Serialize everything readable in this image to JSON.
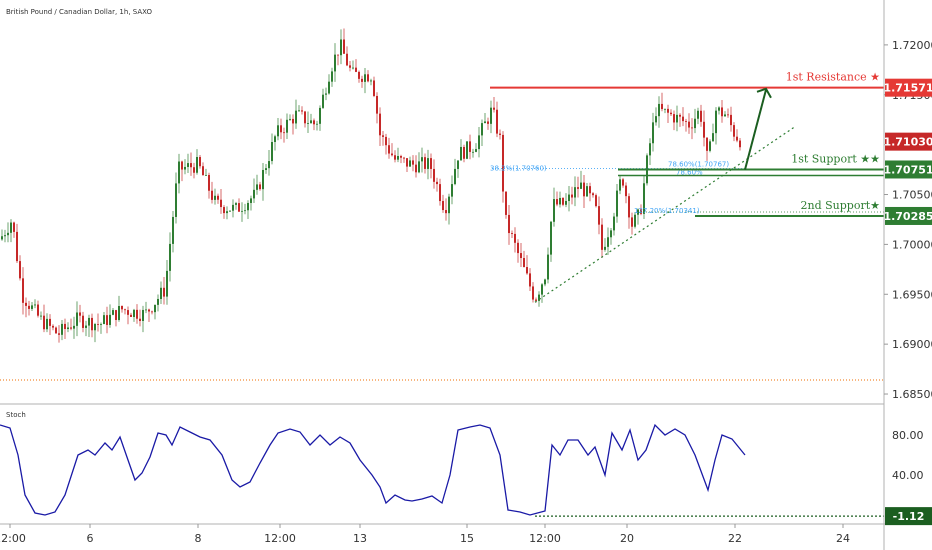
{
  "chart_data": [
    {
      "type": "candlestick",
      "title": "British Pound / Canadian Dollar, 1h, SAXO",
      "x_ticks": [
        "12:00",
        "6",
        "8",
        "12:00",
        "13",
        "15",
        "12:00",
        "20",
        "22",
        "24"
      ],
      "y_ticks": [
        "1.72000",
        "1.71500",
        "1.71000",
        "1.70500",
        "1.70000",
        "1.69500",
        "1.69000",
        "1.68500"
      ],
      "ylim": [
        1.684,
        1.7245
      ],
      "colors": {
        "up": "#2e7d32",
        "down": "#c62828",
        "resistance": "#e53935",
        "support": "#2e7d32",
        "fib": "#42a5f5",
        "trend": "#2e7d32",
        "reference": "#ef6c00"
      },
      "series": [
        {
          "name": "",
          "close_path": [
            [
              0,
              1.7005
            ],
            [
              12,
              1.7025
            ],
            [
              22,
              1.695
            ],
            [
              40,
              1.6925
            ],
            [
              58,
              1.691
            ],
            [
              78,
              1.6925
            ],
            [
              100,
              1.692
            ],
            [
              122,
              1.6935
            ],
            [
              145,
              1.693
            ],
            [
              165,
              1.6955
            ],
            [
              178,
              1.7075
            ],
            [
              198,
              1.708
            ],
            [
              216,
              1.704
            ],
            [
              236,
              1.7035
            ],
            [
              256,
              1.705
            ],
            [
              276,
              1.711
            ],
            [
              296,
              1.713
            ],
            [
              316,
              1.712
            ],
            [
              330,
              1.7175
            ],
            [
              340,
              1.72
            ],
            [
              352,
              1.717
            ],
            [
              372,
              1.717
            ],
            [
              380,
              1.711
            ],
            [
              395,
              1.7085
            ],
            [
              412,
              1.708
            ],
            [
              430,
              1.708
            ],
            [
              445,
              1.7035
            ],
            [
              458,
              1.709
            ],
            [
              475,
              1.71
            ],
            [
              492,
              1.7135
            ],
            [
              500,
              1.7105
            ],
            [
              505,
              1.7025
            ],
            [
              520,
              1.6985
            ],
            [
              535,
              1.6945
            ],
            [
              545,
              1.697
            ],
            [
              553,
              1.704
            ],
            [
              565,
              1.704
            ],
            [
              580,
              1.706
            ],
            [
              595,
              1.704
            ],
            [
              602,
              1.6995
            ],
            [
              612,
              1.7025
            ],
            [
              622,
              1.707
            ],
            [
              632,
              1.702
            ],
            [
              640,
              1.703
            ],
            [
              648,
              1.709
            ],
            [
              656,
              1.7135
            ],
            [
              670,
              1.713
            ],
            [
              690,
              1.712
            ],
            [
              700,
              1.7135
            ],
            [
              708,
              1.708
            ],
            [
              715,
              1.7135
            ],
            [
              726,
              1.713
            ],
            [
              735,
              1.711
            ],
            [
              742,
              1.7103
            ]
          ]
        }
      ],
      "annotations": [
        {
          "text": "1st Resistance ★",
          "value": 1.71571,
          "badge": "1.71571",
          "color": "#e53935"
        },
        {
          "text": "1st Support ★★",
          "value": 1.70751,
          "badge": "1.70751",
          "color": "#2e7d32"
        },
        {
          "text": "2nd Support★",
          "value": 1.70285,
          "badge": "1.70285",
          "color": "#2e7d32"
        }
      ],
      "current_price_badge": "1.71030",
      "current_price": 1.7103,
      "fib_labels": [
        "38.2%(1.70760)",
        "78.60%(1.70767)",
        "78.60%",
        "127.20%(1.70341)"
      ],
      "fib_level_value": 1.7076,
      "reference_level": 1.6864
    },
    {
      "type": "line",
      "title": "Stoch",
      "ylim": [
        -5,
        100
      ],
      "y_ticks": [
        "80.00",
        "40.00"
      ],
      "current_badge": "-1.12",
      "reference_value": -1.12,
      "line_color": "#1a1aa6",
      "series": [
        {
          "name": "",
          "points": [
            [
              0,
              90
            ],
            [
              10,
              87
            ],
            [
              18,
              60
            ],
            [
              25,
              20
            ],
            [
              35,
              2
            ],
            [
              45,
              0
            ],
            [
              55,
              3
            ],
            [
              65,
              20
            ],
            [
              78,
              60
            ],
            [
              88,
              65
            ],
            [
              95,
              60
            ],
            [
              105,
              72
            ],
            [
              112,
              65
            ],
            [
              120,
              78
            ],
            [
              128,
              55
            ],
            [
              135,
              35
            ],
            [
              142,
              42
            ],
            [
              150,
              58
            ],
            [
              158,
              82
            ],
            [
              166,
              80
            ],
            [
              172,
              70
            ],
            [
              180,
              88
            ],
            [
              190,
              83
            ],
            [
              200,
              78
            ],
            [
              210,
              75
            ],
            [
              222,
              60
            ],
            [
              232,
              35
            ],
            [
              240,
              28
            ],
            [
              250,
              33
            ],
            [
              260,
              52
            ],
            [
              270,
              70
            ],
            [
              278,
              82
            ],
            [
              290,
              86
            ],
            [
              300,
              83
            ],
            [
              310,
              70
            ],
            [
              320,
              80
            ],
            [
              330,
              70
            ],
            [
              340,
              78
            ],
            [
              350,
              72
            ],
            [
              360,
              55
            ],
            [
              372,
              40
            ],
            [
              380,
              28
            ],
            [
              386,
              12
            ],
            [
              395,
              20
            ],
            [
              405,
              15
            ],
            [
              412,
              14
            ],
            [
              422,
              16
            ],
            [
              432,
              19
            ],
            [
              442,
              12
            ],
            [
              450,
              40
            ],
            [
              458,
              85
            ],
            [
              470,
              88
            ],
            [
              480,
              90
            ],
            [
              490,
              87
            ],
            [
              500,
              60
            ],
            [
              508,
              5
            ],
            [
              520,
              3
            ],
            [
              530,
              0
            ],
            [
              545,
              4
            ],
            [
              552,
              70
            ],
            [
              560,
              60
            ],
            [
              568,
              75
            ],
            [
              578,
              75
            ],
            [
              588,
              60
            ],
            [
              595,
              68
            ],
            [
              605,
              40
            ],
            [
              612,
              82
            ],
            [
              622,
              65
            ],
            [
              630,
              85
            ],
            [
              638,
              55
            ],
            [
              646,
              65
            ],
            [
              655,
              90
            ],
            [
              665,
              80
            ],
            [
              675,
              86
            ],
            [
              685,
              80
            ],
            [
              695,
              60
            ],
            [
              708,
              25
            ],
            [
              715,
              55
            ],
            [
              722,
              80
            ],
            [
              732,
              76
            ],
            [
              745,
              60
            ]
          ]
        }
      ]
    }
  ]
}
